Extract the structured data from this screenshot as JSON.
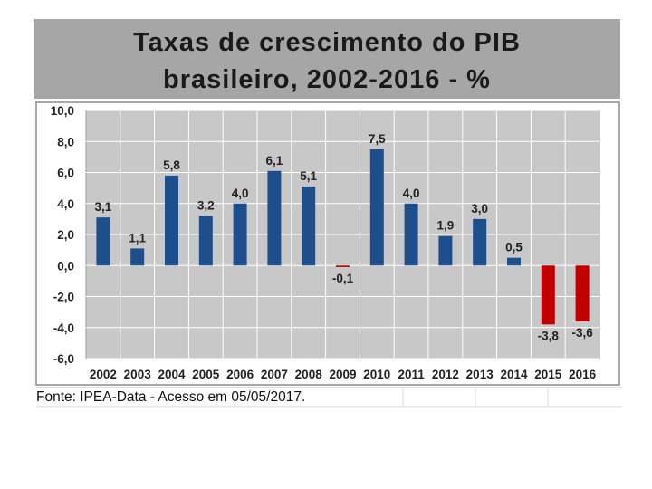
{
  "title": {
    "line1": "Taxas de crescimento do PIB",
    "line2": "brasileiro, 2002-2016 - %"
  },
  "colors": {
    "positive_bar": "#1f4e8c",
    "negative_bar": "#c00000",
    "plot_background": "#c8c8c8",
    "title_background": "#a6a6a6"
  },
  "chart_data": {
    "type": "bar",
    "categories": [
      "2002",
      "2003",
      "2004",
      "2005",
      "2006",
      "2007",
      "2008",
      "2009",
      "2010",
      "2011",
      "2012",
      "2013",
      "2014",
      "2015",
      "2016"
    ],
    "values": [
      3.1,
      1.1,
      5.8,
      3.2,
      4.0,
      6.1,
      5.1,
      -0.1,
      7.5,
      4.0,
      1.9,
      3.0,
      0.5,
      -3.8,
      -3.6
    ],
    "data_labels": [
      "3,1",
      "1,1",
      "5,8",
      "3,2",
      "4,0",
      "6,1",
      "5,1",
      "-0,1",
      "7,5",
      "4,0",
      "1,9",
      "3,0",
      "0,5",
      "-3,8",
      "-3,6"
    ],
    "y_ticks": [
      "10,0",
      "8,0",
      "6,0",
      "4,0",
      "2,0",
      "0,0",
      "-2,0",
      "-4,0",
      "-6,0"
    ],
    "ylim": [
      -6,
      10
    ],
    "grid": true,
    "legend": "none"
  },
  "source": "Fonte: IPEA-Data - Acesso em 05/05/2017."
}
